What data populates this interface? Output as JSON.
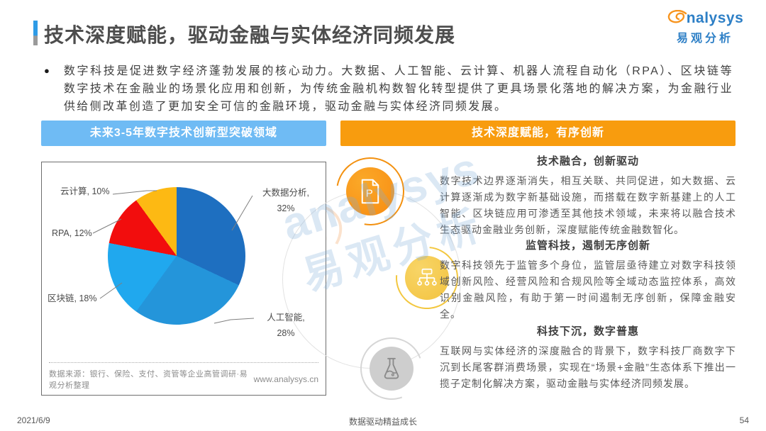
{
  "header": {
    "title": "技术深度赋能，驱动金融与实体经济同频发展",
    "logo": {
      "brand": "analysys",
      "brand_cn": "易观分析"
    }
  },
  "intro": {
    "bullet": "●",
    "text": "数字科技是促进数字经济蓬勃发展的核心动力。大数据、人工智能、云计算、机器人流程自动化（RPA）、区块链等数字技术在金融业的场景化应用和创新，为传统金融机构数智化转型提供了更具场景化落地的解决方案，为金融行业供给侧改革创造了更加安全可信的金融环境，驱动金融与实体经济同频发展。"
  },
  "left_panel": {
    "header": "未来3-5年数字技术创新型突破领域",
    "header_color": "#6fbbf4",
    "source_note": "数据来源：银行、保险、支付、资管等企业高管调研·易观分析整理",
    "website": "www.analysys.cn"
  },
  "chart_data": {
    "type": "pie",
    "title": "未来3-5年数字技术创新型突破领域",
    "start_angle_deg": 0,
    "direction": "clockwise",
    "slices": [
      {
        "label": "大数据分析",
        "value": 32,
        "color": "#1e6fc0"
      },
      {
        "label": "人工智能",
        "value": 28,
        "color": "#2495da"
      },
      {
        "label": "区块链",
        "value": 18,
        "color": "#20a8ee"
      },
      {
        "label": "RPA",
        "value": 12,
        "color": "#f20d0d"
      },
      {
        "label": "云计算",
        "value": 10,
        "color": "#fdb913"
      }
    ]
  },
  "right_panel": {
    "header": "技术深度赋能，有序创新",
    "header_color": "#f89c0e",
    "sections": [
      {
        "icon": "document-p-icon",
        "title": "技术融合，创新驱动",
        "body": "数字技术边界逐渐消失，相互关联、共同促进，如大数据、云计算逐渐成为数字新基础设施，而搭载在数字新基建上的人工智能、区块链应用可渗透至其他技术领域，未来将以融合技术生态驱动金融业务创新，深度赋能传统金融数智化。"
      },
      {
        "icon": "sitemap-icon",
        "title": "监管科技，遏制无序创新",
        "body": "数字科技领先于监管多个身位，监管层亟待建立对数字科技领域创新风险、经营风险和合规风险等全域动态监控体系，高效识别金融风险，有助于第一时间遏制无序创新，保障金融安全。"
      },
      {
        "icon": "flask-icon",
        "title": "科技下沉，数字普惠",
        "body": "互联网与实体经济的深度融合的背景下，数字科技厂商数字下沉到长尾客群消费场景，实现在“场景+金融”生态体系下推出一揽子定制化解决方案，驱动金融与实体经济同频发展。"
      }
    ]
  },
  "watermark": {
    "line1": "analysys",
    "line2": "易观分析"
  },
  "footer": {
    "date": "2021/6/9",
    "slogan": "数据驱动精益成长",
    "page": "54"
  }
}
